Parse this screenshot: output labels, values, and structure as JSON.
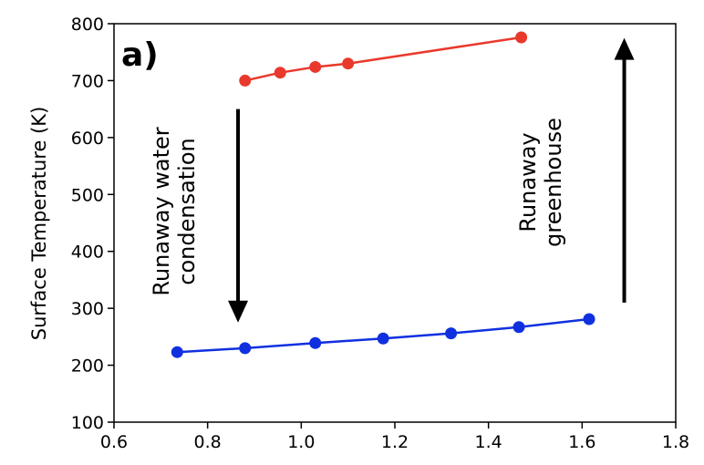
{
  "chart_data": {
    "type": "line",
    "panel_label": "a)",
    "ylabel": "Surface Temperature (K)",
    "xlabel": "",
    "xlim": [
      0.6,
      1.8
    ],
    "ylim": [
      100,
      800
    ],
    "xticks": [
      0.6,
      0.8,
      1.0,
      1.2,
      1.4,
      1.6,
      1.8
    ],
    "xtick_labels": [
      "0.6",
      "0.8",
      "1.0",
      "1.2",
      "1.4",
      "1.6",
      "1.8"
    ],
    "yticks": [
      100,
      200,
      300,
      400,
      500,
      600,
      700,
      800
    ],
    "ytick_labels": [
      "100",
      "200",
      "300",
      "400",
      "500",
      "600",
      "700",
      "800"
    ],
    "grid": false,
    "series": [
      {
        "color": "#e8392c",
        "x": [
          0.88,
          0.955,
          1.03,
          1.1,
          1.47
        ],
        "y": [
          700,
          714,
          724,
          730,
          776
        ]
      },
      {
        "color": "#1030e0",
        "x": [
          0.735,
          0.88,
          1.03,
          1.175,
          1.32,
          1.465,
          1.615
        ],
        "y": [
          223,
          230,
          239,
          247,
          256,
          267,
          281
        ]
      }
    ],
    "annotations": [
      {
        "lines": [
          "Runaway water",
          "condensation"
        ],
        "arrow": "down",
        "x": 0.865,
        "y_from": 650,
        "y_to": 275
      },
      {
        "lines": [
          "Runaway",
          "greenhouse"
        ],
        "arrow": "up",
        "x": 1.69,
        "y_from": 310,
        "y_to": 775
      }
    ]
  }
}
